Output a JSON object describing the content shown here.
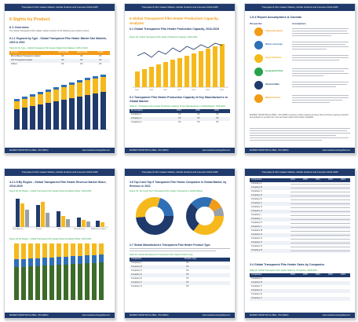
{
  "common": {
    "header": "Transparent Film Heater Market, Global Outlook and Forecast 2019-2025",
    "footer_left": "MARKET MONITOR GLOBAL, INC (MMG)",
    "footer_right": "www.marketmonitorglobal.com"
  },
  "p1": {
    "title": "6  Sights by Product",
    "subhead": "6.1  Overview",
    "body": "The Global Transparent Film Heater market consists of the following key product sectors.",
    "section": "6.1.1 Segment by Type - Global Transparent Film Heater Market Size Markets, 2015 & 2019",
    "caption": "Table 39. By Type - Global Transparent Film Heater Market Size Markets, 2015 & 2019",
    "cols": [
      "By Type",
      "2015 (US$)",
      "2019 (US$)",
      "CAGR"
    ],
    "rows": [
      [
        "Micro-Based Transparent Heater",
        "XX",
        "XX",
        "XX"
      ],
      [
        "ITO Transparent Heater",
        "XX",
        "XX",
        "XX"
      ],
      [
        "Others",
        "XX",
        "XX",
        "XX"
      ]
    ]
  },
  "p2": {
    "title": "6  Global Transparent Film Heater Production Capacity, Analysis",
    "sub1": "6.1 Global Transparent Film Heater Production Capacity, 2016-2029",
    "caption1": "Figure 40. Global Transparent Film Heater Production Capacity, 2016-2029",
    "sub2": "6.2 Transparent Film Heater Production Capacity of Key Manufacturers in Global Market",
    "caption2": "Table 41. Transparent Film Heater Production Capacity of Key Manufacturers in Global Market, 2018-2019",
    "cols": [
      "By Company",
      "2019",
      "2020",
      "2025"
    ],
    "rows": [
      [
        "Company 1",
        "XX",
        "XX",
        "XX"
      ],
      [
        "Company 2",
        "XX",
        "XX",
        "XX"
      ],
      [
        "Company 3",
        "XX",
        "XX",
        "XX"
      ]
    ]
  },
  "p3": {
    "title": "1.5.4 Report Assumptions & Caveats",
    "left_head": "Perspective",
    "right_head": "Assumptions",
    "items": [
      "Industry/Company",
      "Market Landscape",
      "Regional Markets",
      "Geographical Data",
      "Historical Data",
      "Market Forecast"
    ],
    "disclaimer": "MARKET MONITOR GLOBAL, INC (MMG) employs a data mapping process that combines ongoing research and analysis to provide the most accurate market information available."
  },
  "p4": {
    "title": "4.2.1.5 By Region - Global Transparent Film Heater Revenue Market Share, 2016-2029",
    "caption1": "Figure 62. By Region - Global Transparent Film Heater Revenue Market Share, 2016-2029",
    "groups": [
      "North America",
      "Europe",
      "Asia",
      "South America",
      "Middle East & Africa"
    ],
    "caption2": "Figure 63. By Region - Global Transparent Film Heater Revenue Market Share, 2016-2029"
  },
  "p5": {
    "title": "3.6  Top 3 and Top 5 Transparent Film Heater Companies in Global Market, by Revenue in 2022",
    "caption1": "Figure 44. Top 3 and Top 5 Transparent Film Heater Companies in Global Market",
    "title2": "3.7  Global Manufacturers Transparent Film Heater Product Type",
    "caption2": "Table 45. Global Manufacturers Transparent Film Heater Product Type",
    "cols": [
      "Companies",
      "Product Type"
    ],
    "rows": [
      [
        "Company A",
        "XX"
      ],
      [
        "Company B",
        "XX"
      ],
      [
        "Company C",
        "XX"
      ],
      [
        "Company D",
        "XX"
      ],
      [
        "Company E",
        "XX"
      ],
      [
        "Company F",
        "XX"
      ],
      [
        "Company G",
        "XX"
      ]
    ]
  },
  "p6": {
    "title": "3.4 Global Transparent Film Heater Sales by Companies",
    "caption": "Table 29. Global Transparent Film Heater Sales by Companies, 2018-2023",
    "cols": [
      "Companies",
      "2019",
      "2020",
      "2021",
      "2022",
      "2023"
    ],
    "rows": [
      "Company A",
      "Company B",
      "Company C",
      "Company D",
      "Company E",
      "Company F",
      "Company G",
      "Company H",
      "Company I",
      "Company J",
      "Company K",
      "Company L",
      "Company M",
      "Company N",
      "Company O",
      "Company P",
      "Company Q",
      "Company R"
    ]
  },
  "colors": {
    "navy": "#1f3a6b",
    "orange": "#f29b16",
    "green": "#27a34b",
    "yellow": "#f6b91c",
    "blue": "#2f6fb5"
  }
}
